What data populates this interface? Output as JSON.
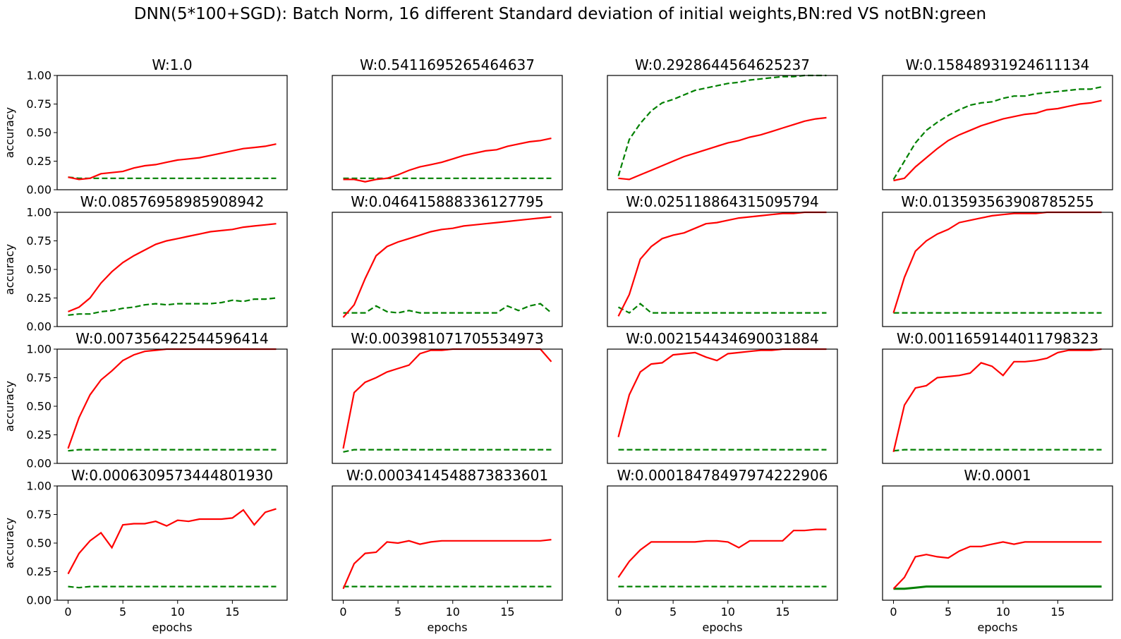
{
  "chart_data": {
    "type": "line",
    "suptitle": "DNN(5*100+SGD): Batch Norm, 16 different Standard deviation of initial weights,BN:red VS notBN:green",
    "xlabel": "epochs",
    "ylabel": "accuracy",
    "x": [
      0,
      1,
      2,
      3,
      4,
      5,
      6,
      7,
      8,
      9,
      10,
      11,
      12,
      13,
      14,
      15,
      16,
      17,
      18,
      19
    ],
    "xlim": [
      -1,
      20
    ],
    "ylim": [
      0,
      1.0
    ],
    "xticks": [
      "0",
      "5",
      "10",
      "15"
    ],
    "yticks": [
      "0.00",
      "0.25",
      "0.50",
      "0.75",
      "1.00"
    ],
    "colors": {
      "bn": "#ff0000",
      "notbn": "#008000"
    },
    "series_names": [
      "BN",
      "notBN"
    ],
    "panels": [
      {
        "title": "W:1.0",
        "bn": [
          0.11,
          0.09,
          0.1,
          0.14,
          0.15,
          0.16,
          0.19,
          0.21,
          0.22,
          0.24,
          0.26,
          0.27,
          0.28,
          0.3,
          0.32,
          0.34,
          0.36,
          0.37,
          0.38,
          0.4
        ],
        "notbn": [
          0.11,
          0.1,
          0.1,
          0.1,
          0.1,
          0.1,
          0.1,
          0.1,
          0.1,
          0.1,
          0.1,
          0.1,
          0.1,
          0.1,
          0.1,
          0.1,
          0.1,
          0.1,
          0.1,
          0.1
        ]
      },
      {
        "title": "W:0.5411695265464637",
        "bn": [
          0.09,
          0.09,
          0.07,
          0.09,
          0.1,
          0.13,
          0.17,
          0.2,
          0.22,
          0.24,
          0.27,
          0.3,
          0.32,
          0.34,
          0.35,
          0.38,
          0.4,
          0.42,
          0.43,
          0.45
        ],
        "notbn": [
          0.1,
          0.1,
          0.1,
          0.1,
          0.1,
          0.1,
          0.1,
          0.1,
          0.1,
          0.1,
          0.1,
          0.1,
          0.1,
          0.1,
          0.1,
          0.1,
          0.1,
          0.1,
          0.1,
          0.1
        ]
      },
      {
        "title": "W:0.2928644564625237",
        "bn": [
          0.1,
          0.09,
          0.13,
          0.17,
          0.21,
          0.25,
          0.29,
          0.32,
          0.35,
          0.38,
          0.41,
          0.43,
          0.46,
          0.48,
          0.51,
          0.54,
          0.57,
          0.6,
          0.62,
          0.63
        ],
        "notbn": [
          0.12,
          0.44,
          0.58,
          0.69,
          0.76,
          0.79,
          0.83,
          0.87,
          0.89,
          0.91,
          0.93,
          0.94,
          0.96,
          0.97,
          0.98,
          0.99,
          0.99,
          1.0,
          1.0,
          1.0
        ]
      },
      {
        "title": "W:0.15848931924611134",
        "bn": [
          0.08,
          0.1,
          0.2,
          0.28,
          0.36,
          0.43,
          0.48,
          0.52,
          0.56,
          0.59,
          0.62,
          0.64,
          0.66,
          0.67,
          0.7,
          0.71,
          0.73,
          0.75,
          0.76,
          0.78
        ],
        "notbn": [
          0.09,
          0.25,
          0.41,
          0.52,
          0.59,
          0.65,
          0.7,
          0.74,
          0.76,
          0.77,
          0.8,
          0.82,
          0.82,
          0.84,
          0.85,
          0.86,
          0.87,
          0.88,
          0.88,
          0.9
        ]
      },
      {
        "title": "W:0.08576958985908942",
        "bn": [
          0.13,
          0.17,
          0.25,
          0.38,
          0.48,
          0.56,
          0.62,
          0.67,
          0.72,
          0.75,
          0.77,
          0.79,
          0.81,
          0.83,
          0.84,
          0.85,
          0.87,
          0.88,
          0.89,
          0.9
        ],
        "notbn": [
          0.1,
          0.11,
          0.11,
          0.13,
          0.14,
          0.16,
          0.17,
          0.19,
          0.2,
          0.19,
          0.2,
          0.2,
          0.2,
          0.2,
          0.21,
          0.23,
          0.22,
          0.24,
          0.24,
          0.25
        ]
      },
      {
        "title": "W:0.046415888336127795",
        "bn": [
          0.08,
          0.19,
          0.42,
          0.62,
          0.7,
          0.74,
          0.77,
          0.8,
          0.83,
          0.85,
          0.86,
          0.88,
          0.89,
          0.9,
          0.91,
          0.92,
          0.93,
          0.94,
          0.95,
          0.96
        ],
        "notbn": [
          0.12,
          0.12,
          0.12,
          0.18,
          0.13,
          0.12,
          0.14,
          0.12,
          0.12,
          0.12,
          0.12,
          0.12,
          0.12,
          0.12,
          0.12,
          0.18,
          0.14,
          0.18,
          0.2,
          0.12
        ]
      },
      {
        "title": "W:0.025118864315095794",
        "bn": [
          0.09,
          0.28,
          0.59,
          0.7,
          0.77,
          0.8,
          0.82,
          0.86,
          0.9,
          0.91,
          0.93,
          0.95,
          0.96,
          0.97,
          0.98,
          0.99,
          0.99,
          1.0,
          1.0,
          1.0
        ],
        "notbn": [
          0.17,
          0.12,
          0.2,
          0.12,
          0.12,
          0.12,
          0.12,
          0.12,
          0.12,
          0.12,
          0.12,
          0.12,
          0.12,
          0.12,
          0.12,
          0.12,
          0.12,
          0.12,
          0.12,
          0.12
        ]
      },
      {
        "title": "W:0.013593563908785255",
        "bn": [
          0.12,
          0.43,
          0.66,
          0.75,
          0.81,
          0.85,
          0.91,
          0.93,
          0.95,
          0.97,
          0.98,
          0.99,
          0.99,
          0.99,
          1.0,
          1.0,
          1.0,
          1.0,
          1.0,
          1.0
        ],
        "notbn": [
          0.12,
          0.12,
          0.12,
          0.12,
          0.12,
          0.12,
          0.12,
          0.12,
          0.12,
          0.12,
          0.12,
          0.12,
          0.12,
          0.12,
          0.12,
          0.12,
          0.12,
          0.12,
          0.12,
          0.12
        ]
      },
      {
        "title": "W:0.007356422544596414",
        "bn": [
          0.13,
          0.4,
          0.6,
          0.73,
          0.81,
          0.9,
          0.95,
          0.98,
          0.99,
          1.0,
          1.0,
          1.0,
          1.0,
          1.0,
          1.0,
          1.0,
          1.0,
          1.0,
          1.0,
          1.0
        ],
        "notbn": [
          0.11,
          0.12,
          0.12,
          0.12,
          0.12,
          0.12,
          0.12,
          0.12,
          0.12,
          0.12,
          0.12,
          0.12,
          0.12,
          0.12,
          0.12,
          0.12,
          0.12,
          0.12,
          0.12,
          0.12
        ]
      },
      {
        "title": "W:0.003981071705534973",
        "bn": [
          0.13,
          0.62,
          0.71,
          0.75,
          0.8,
          0.83,
          0.86,
          0.96,
          0.99,
          0.99,
          1.0,
          1.0,
          1.0,
          1.0,
          1.0,
          1.0,
          1.0,
          1.0,
          1.0,
          0.89
        ],
        "notbn": [
          0.1,
          0.12,
          0.12,
          0.12,
          0.12,
          0.12,
          0.12,
          0.12,
          0.12,
          0.12,
          0.12,
          0.12,
          0.12,
          0.12,
          0.12,
          0.12,
          0.12,
          0.12,
          0.12,
          0.12
        ]
      },
      {
        "title": "W:0.002154434690031884",
        "bn": [
          0.23,
          0.6,
          0.8,
          0.87,
          0.88,
          0.95,
          0.96,
          0.97,
          0.93,
          0.9,
          0.96,
          0.97,
          0.98,
          0.99,
          0.99,
          1.0,
          1.0,
          1.0,
          1.0,
          1.0
        ],
        "notbn": [
          0.12,
          0.12,
          0.12,
          0.12,
          0.12,
          0.12,
          0.12,
          0.12,
          0.12,
          0.12,
          0.12,
          0.12,
          0.12,
          0.12,
          0.12,
          0.12,
          0.12,
          0.12,
          0.12,
          0.12
        ]
      },
      {
        "title": "W:0.0011659144011798323",
        "bn": [
          0.1,
          0.51,
          0.66,
          0.68,
          0.75,
          0.76,
          0.77,
          0.79,
          0.88,
          0.85,
          0.77,
          0.89,
          0.89,
          0.9,
          0.92,
          0.97,
          0.99,
          0.99,
          0.99,
          1.0
        ],
        "notbn": [
          0.11,
          0.12,
          0.12,
          0.12,
          0.12,
          0.12,
          0.12,
          0.12,
          0.12,
          0.12,
          0.12,
          0.12,
          0.12,
          0.12,
          0.12,
          0.12,
          0.12,
          0.12,
          0.12,
          0.12
        ]
      },
      {
        "title": "W:0.0006309573444801930",
        "bn": [
          0.23,
          0.41,
          0.52,
          0.59,
          0.46,
          0.66,
          0.67,
          0.67,
          0.69,
          0.65,
          0.7,
          0.69,
          0.71,
          0.71,
          0.71,
          0.72,
          0.79,
          0.66,
          0.77,
          0.8
        ],
        "notbn": [
          0.12,
          0.11,
          0.12,
          0.12,
          0.12,
          0.12,
          0.12,
          0.12,
          0.12,
          0.12,
          0.12,
          0.12,
          0.12,
          0.12,
          0.12,
          0.12,
          0.12,
          0.12,
          0.12,
          0.12
        ]
      },
      {
        "title": "W:0.0003414548873833601",
        "bn": [
          0.1,
          0.32,
          0.41,
          0.42,
          0.51,
          0.5,
          0.52,
          0.49,
          0.51,
          0.52,
          0.52,
          0.52,
          0.52,
          0.52,
          0.52,
          0.52,
          0.52,
          0.52,
          0.52,
          0.53
        ],
        "notbn": [
          0.12,
          0.12,
          0.12,
          0.12,
          0.12,
          0.12,
          0.12,
          0.12,
          0.12,
          0.12,
          0.12,
          0.12,
          0.12,
          0.12,
          0.12,
          0.12,
          0.12,
          0.12,
          0.12,
          0.12
        ]
      },
      {
        "title": "W:0.00018478497974222906",
        "bn": [
          0.2,
          0.34,
          0.44,
          0.51,
          0.51,
          0.51,
          0.51,
          0.51,
          0.52,
          0.52,
          0.51,
          0.46,
          0.52,
          0.52,
          0.52,
          0.52,
          0.61,
          0.61,
          0.62,
          0.62
        ],
        "notbn": [
          0.12,
          0.12,
          0.12,
          0.12,
          0.12,
          0.12,
          0.12,
          0.12,
          0.12,
          0.12,
          0.12,
          0.12,
          0.12,
          0.12,
          0.12,
          0.12,
          0.12,
          0.12,
          0.12,
          0.12
        ]
      },
      {
        "title": "W:0.0001",
        "bn": [
          0.1,
          0.2,
          0.38,
          0.4,
          0.38,
          0.37,
          0.43,
          0.47,
          0.47,
          0.49,
          0.51,
          0.49,
          0.51,
          0.51,
          0.51,
          0.51,
          0.51,
          0.51,
          0.51,
          0.51
        ],
        "notbn": [
          0.1,
          0.1,
          0.11,
          0.12,
          0.12,
          0.12,
          0.12,
          0.12,
          0.12,
          0.12,
          0.12,
          0.12,
          0.12,
          0.12,
          0.12,
          0.12,
          0.12,
          0.12,
          0.12,
          0.12
        ],
        "notbn_solid": true
      }
    ]
  }
}
